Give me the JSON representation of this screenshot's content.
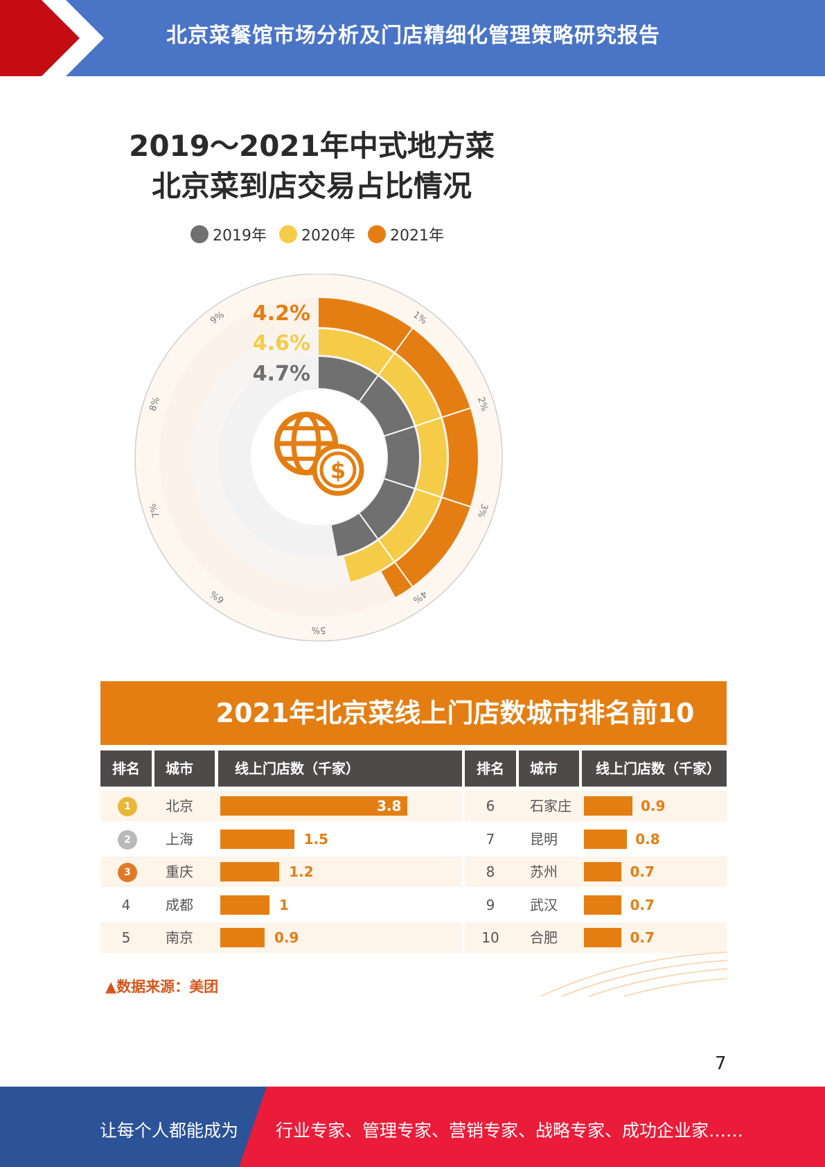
{
  "header": {
    "title": "北京菜餐馆市场分析及门店精细化管理策略研究报告"
  },
  "radial_chart": {
    "title_line1": "2019～2021年中式地方菜",
    "title_line2": "北京菜到店交易占比情况",
    "legend": [
      {
        "label": "2019年",
        "color": "#707070"
      },
      {
        "label": "2020年",
        "color": "#f5cc47"
      },
      {
        "label": "2021年",
        "color": "#e47e12"
      }
    ],
    "value_labels": [
      "4.2%",
      "4.6%",
      "4.7%"
    ],
    "scale_ticks": [
      "1%",
      "2%",
      "3%",
      "4%",
      "5%",
      "6%",
      "7%",
      "8%",
      "9%"
    ],
    "center_icon": "globe-dollar-icon"
  },
  "chart_data": [
    {
      "type": "bar",
      "title": "2019～2021年中式地方菜北京菜到店交易占比情况",
      "categories": [
        "2019年",
        "2020年",
        "2021年"
      ],
      "values": [
        4.7,
        4.6,
        4.2
      ],
      "unit": "%",
      "ylim": [
        0,
        10
      ]
    },
    {
      "type": "bar",
      "title": "2021年北京菜线上门店数城市排名前10",
      "categories": [
        "北京",
        "上海",
        "重庆",
        "成都",
        "南京",
        "石家庄",
        "昆明",
        "苏州",
        "武汉",
        "合肥"
      ],
      "values": [
        3.8,
        1.5,
        1.2,
        1,
        0.9,
        0.9,
        0.8,
        0.7,
        0.7,
        0.7
      ],
      "ylabel": "线上门店数（千家）"
    }
  ],
  "ranking_table": {
    "title": "2021年北京菜线上门店数城市排名前10",
    "headers": [
      "排名",
      "城市",
      "线上门店数（千家）",
      "排名",
      "城市",
      "线上门店数（千家）"
    ],
    "left_rows": [
      {
        "rank": "1",
        "medal": "gold-medal-icon",
        "city": "北京",
        "value": "3.8"
      },
      {
        "rank": "2",
        "medal": "silver-medal-icon",
        "city": "上海",
        "value": "1.5"
      },
      {
        "rank": "3",
        "medal": "bronze-medal-icon",
        "city": "重庆",
        "value": "1.2"
      },
      {
        "rank": "4",
        "medal": "",
        "city": "成都",
        "value": "1"
      },
      {
        "rank": "5",
        "medal": "",
        "city": "南京",
        "value": "0.9"
      }
    ],
    "right_rows": [
      {
        "rank": "6",
        "city": "石家庄",
        "value": "0.9"
      },
      {
        "rank": "7",
        "city": "昆明",
        "value": "0.8"
      },
      {
        "rank": "8",
        "city": "苏州",
        "value": "0.7"
      },
      {
        "rank": "9",
        "city": "武汉",
        "value": "0.7"
      },
      {
        "rank": "10",
        "city": "合肥",
        "value": "0.7"
      }
    ],
    "source": "▲数据来源：美团"
  },
  "page_number": "7",
  "footer": {
    "slogan": "让每个人都能成为",
    "tail": "行业专家、管理专家、营销专家、战略专家、成功企业家……"
  }
}
